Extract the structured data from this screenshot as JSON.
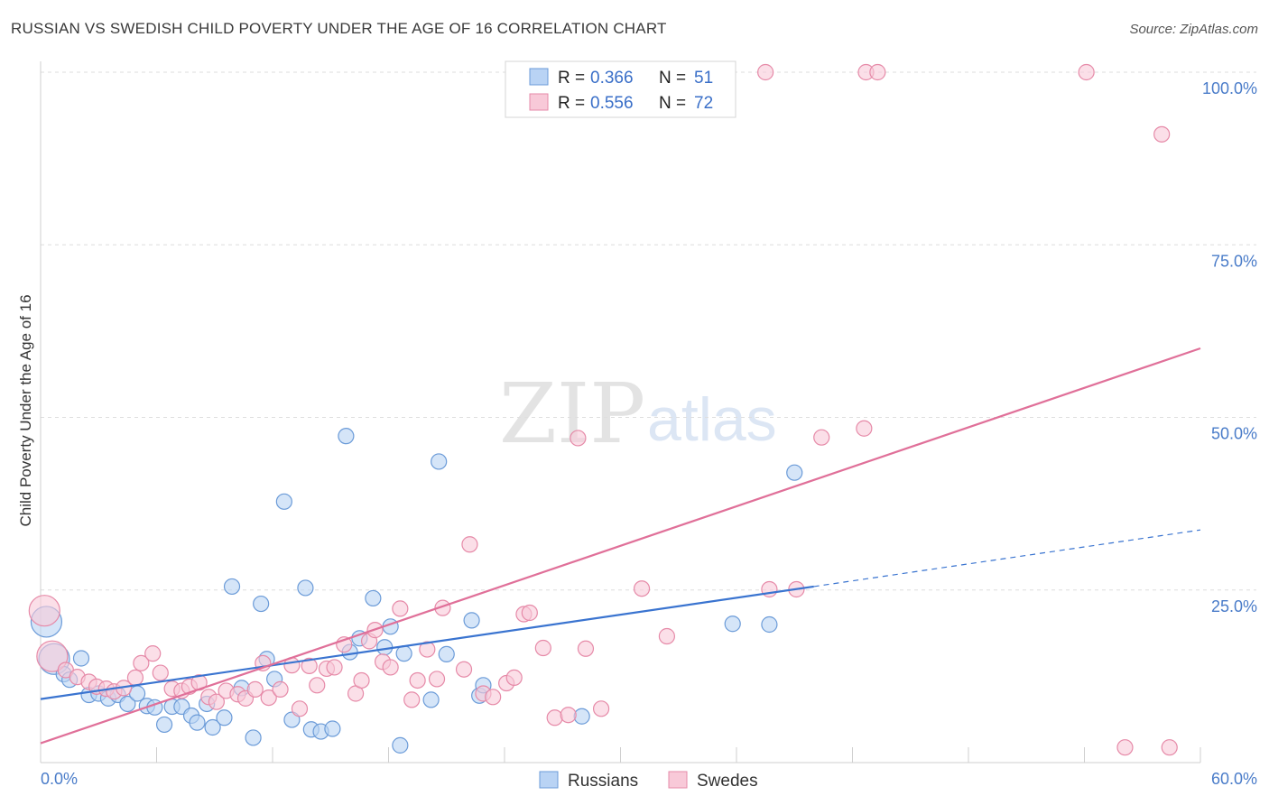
{
  "header": {
    "title": "RUSSIAN VS SWEDISH CHILD POVERTY UNDER THE AGE OF 16 CORRELATION CHART",
    "source": "Source: ZipAtlas.com"
  },
  "watermark": {
    "zip": "ZIP",
    "atlas": "atlas"
  },
  "legend_top": {
    "items": [
      {
        "r_label": "R =",
        "r_value": "0.366",
        "n_label": "N =",
        "n_value": "51"
      },
      {
        "r_label": "R =",
        "r_value": "0.556",
        "n_label": "N =",
        "n_value": "72"
      }
    ]
  },
  "legend_bottom": {
    "items": [
      "Russians",
      "Swedes"
    ]
  },
  "chart_data": {
    "type": "scatter",
    "title": "RUSSIAN VS SWEDISH CHILD POVERTY UNDER THE AGE OF 16 CORRELATION CHART",
    "xlabel": "",
    "ylabel": "Child Poverty Under the Age of 16",
    "xlim": [
      0,
      60
    ],
    "ylim": [
      0,
      102
    ],
    "x_tick_labels": [
      "0.0%",
      "60.0%"
    ],
    "y_tick_values": [
      25,
      50,
      75,
      100
    ],
    "y_tick_labels": [
      "25.0%",
      "50.0%",
      "75.0%",
      "100.0%"
    ],
    "grid": true,
    "legend_position": "top-center",
    "colors": {
      "russians_fill": "#b9d3f4",
      "russians_stroke": "#6b9bd8",
      "russians_line": "#3a74d0",
      "swedes_fill": "#f8c9d8",
      "swedes_stroke": "#e68aa8",
      "swedes_line": "#e07099",
      "tick_text": "#4a7cc9"
    },
    "series": [
      {
        "name": "Russians",
        "trend": {
          "x0": 0,
          "y0": 9.2,
          "x1": 40,
          "y1": 25.5,
          "dashed_to_x": 60,
          "dashed_to_y": 33.7
        },
        "points": [
          {
            "x": 0.3,
            "y": 20.4,
            "big": true
          },
          {
            "x": 0.7,
            "y": 15.0,
            "big": true
          },
          {
            "x": 1.2,
            "y": 12.8
          },
          {
            "x": 1.5,
            "y": 12.0
          },
          {
            "x": 2.1,
            "y": 15.1
          },
          {
            "x": 2.5,
            "y": 9.8
          },
          {
            "x": 3.0,
            "y": 10.0
          },
          {
            "x": 3.5,
            "y": 9.3
          },
          {
            "x": 4.0,
            "y": 9.8
          },
          {
            "x": 4.5,
            "y": 8.5
          },
          {
            "x": 5.0,
            "y": 10.0
          },
          {
            "x": 5.5,
            "y": 8.2
          },
          {
            "x": 5.9,
            "y": 8.0
          },
          {
            "x": 6.4,
            "y": 5.5
          },
          {
            "x": 6.8,
            "y": 8.1
          },
          {
            "x": 7.3,
            "y": 8.1
          },
          {
            "x": 7.8,
            "y": 6.8
          },
          {
            "x": 8.1,
            "y": 5.8
          },
          {
            "x": 8.6,
            "y": 8.5
          },
          {
            "x": 8.9,
            "y": 5.1
          },
          {
            "x": 9.5,
            "y": 6.5
          },
          {
            "x": 9.9,
            "y": 25.5
          },
          {
            "x": 10.4,
            "y": 10.8
          },
          {
            "x": 11.0,
            "y": 3.6
          },
          {
            "x": 11.4,
            "y": 23.0
          },
          {
            "x": 11.7,
            "y": 15.0
          },
          {
            "x": 12.1,
            "y": 12.1
          },
          {
            "x": 12.6,
            "y": 37.8
          },
          {
            "x": 13.0,
            "y": 6.2
          },
          {
            "x": 13.7,
            "y": 25.3
          },
          {
            "x": 14.0,
            "y": 4.8
          },
          {
            "x": 14.5,
            "y": 4.5
          },
          {
            "x": 15.1,
            "y": 4.9
          },
          {
            "x": 15.8,
            "y": 47.3
          },
          {
            "x": 16.0,
            "y": 16.0
          },
          {
            "x": 16.5,
            "y": 18.0
          },
          {
            "x": 17.2,
            "y": 23.8
          },
          {
            "x": 17.8,
            "y": 16.7
          },
          {
            "x": 18.1,
            "y": 19.7
          },
          {
            "x": 18.6,
            "y": 2.5
          },
          {
            "x": 18.8,
            "y": 15.8
          },
          {
            "x": 20.2,
            "y": 9.1
          },
          {
            "x": 20.6,
            "y": 43.6
          },
          {
            "x": 21.0,
            "y": 15.7
          },
          {
            "x": 22.3,
            "y": 20.6
          },
          {
            "x": 22.7,
            "y": 9.7
          },
          {
            "x": 22.9,
            "y": 11.2
          },
          {
            "x": 28.0,
            "y": 6.7
          },
          {
            "x": 35.8,
            "y": 20.1
          },
          {
            "x": 37.7,
            "y": 20.0
          },
          {
            "x": 39.0,
            "y": 42.0
          }
        ]
      },
      {
        "name": "Swedes",
        "trend": {
          "x0": 0,
          "y0": 2.8,
          "x1": 60,
          "y1": 60.0
        },
        "points": [
          {
            "x": 0.2,
            "y": 22.0,
            "big": true
          },
          {
            "x": 0.6,
            "y": 15.4,
            "big": true
          },
          {
            "x": 1.3,
            "y": 13.4
          },
          {
            "x": 1.9,
            "y": 12.4
          },
          {
            "x": 2.5,
            "y": 11.7
          },
          {
            "x": 2.9,
            "y": 11.0
          },
          {
            "x": 3.4,
            "y": 10.7
          },
          {
            "x": 3.8,
            "y": 10.3
          },
          {
            "x": 4.3,
            "y": 10.8
          },
          {
            "x": 4.9,
            "y": 12.3
          },
          {
            "x": 5.2,
            "y": 14.4
          },
          {
            "x": 5.8,
            "y": 15.8
          },
          {
            "x": 6.2,
            "y": 13.0
          },
          {
            "x": 6.8,
            "y": 10.7
          },
          {
            "x": 7.3,
            "y": 10.4
          },
          {
            "x": 7.7,
            "y": 11.0
          },
          {
            "x": 8.2,
            "y": 11.6
          },
          {
            "x": 8.7,
            "y": 9.5
          },
          {
            "x": 9.1,
            "y": 8.8
          },
          {
            "x": 9.6,
            "y": 10.4
          },
          {
            "x": 10.2,
            "y": 9.9
          },
          {
            "x": 10.6,
            "y": 9.3
          },
          {
            "x": 11.1,
            "y": 10.6
          },
          {
            "x": 11.5,
            "y": 14.4
          },
          {
            "x": 11.8,
            "y": 9.4
          },
          {
            "x": 12.4,
            "y": 10.6
          },
          {
            "x": 13.0,
            "y": 14.1
          },
          {
            "x": 13.4,
            "y": 7.8
          },
          {
            "x": 13.9,
            "y": 14.0
          },
          {
            "x": 14.3,
            "y": 11.2
          },
          {
            "x": 14.8,
            "y": 13.6
          },
          {
            "x": 15.2,
            "y": 13.8
          },
          {
            "x": 15.7,
            "y": 17.1
          },
          {
            "x": 16.3,
            "y": 10.0
          },
          {
            "x": 16.6,
            "y": 11.9
          },
          {
            "x": 17.0,
            "y": 17.6
          },
          {
            "x": 17.3,
            "y": 19.2
          },
          {
            "x": 17.7,
            "y": 14.6
          },
          {
            "x": 18.1,
            "y": 13.8
          },
          {
            "x": 18.6,
            "y": 22.3
          },
          {
            "x": 19.2,
            "y": 9.1
          },
          {
            "x": 19.5,
            "y": 11.9
          },
          {
            "x": 20.0,
            "y": 16.4
          },
          {
            "x": 20.5,
            "y": 12.1
          },
          {
            "x": 20.8,
            "y": 22.4
          },
          {
            "x": 21.9,
            "y": 13.5
          },
          {
            "x": 22.2,
            "y": 31.6
          },
          {
            "x": 22.9,
            "y": 10.0
          },
          {
            "x": 23.4,
            "y": 9.5
          },
          {
            "x": 24.1,
            "y": 11.5
          },
          {
            "x": 24.5,
            "y": 12.3
          },
          {
            "x": 25.0,
            "y": 21.5
          },
          {
            "x": 25.3,
            "y": 21.7
          },
          {
            "x": 26.0,
            "y": 16.6
          },
          {
            "x": 26.6,
            "y": 6.5
          },
          {
            "x": 27.3,
            "y": 6.9
          },
          {
            "x": 27.8,
            "y": 47.0
          },
          {
            "x": 28.2,
            "y": 16.5
          },
          {
            "x": 29.0,
            "y": 7.8
          },
          {
            "x": 31.1,
            "y": 25.2
          },
          {
            "x": 32.4,
            "y": 18.3
          },
          {
            "x": 37.7,
            "y": 25.1
          },
          {
            "x": 39.1,
            "y": 25.1
          },
          {
            "x": 40.4,
            "y": 47.1
          },
          {
            "x": 42.6,
            "y": 48.4
          },
          {
            "x": 37.5,
            "y": 100.0
          },
          {
            "x": 42.7,
            "y": 100.0
          },
          {
            "x": 43.3,
            "y": 100.0
          },
          {
            "x": 54.1,
            "y": 100.0
          },
          {
            "x": 58.0,
            "y": 91.0
          },
          {
            "x": 56.1,
            "y": 2.2
          },
          {
            "x": 58.4,
            "y": 2.2
          }
        ]
      }
    ]
  }
}
